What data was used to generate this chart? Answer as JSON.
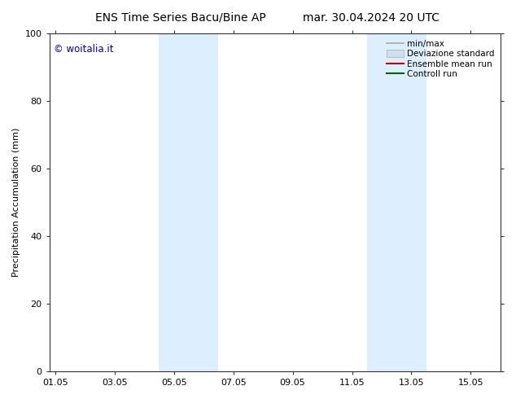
{
  "title_left": "ENS Time Series Bacu/Bine AP",
  "title_right": "mar. 30.04.2024 20 UTC",
  "ylabel": "Precipitation Accumulation (mm)",
  "ylim": [
    0,
    100
  ],
  "yticks": [
    0,
    20,
    40,
    60,
    80,
    100
  ],
  "xtick_labels": [
    "01.05",
    "03.05",
    "05.05",
    "07.05",
    "09.05",
    "11.05",
    "13.05",
    "15.05"
  ],
  "xtick_positions": [
    0,
    2,
    4,
    6,
    8,
    10,
    12,
    14
  ],
  "xlim": [
    -0.2,
    15.0
  ],
  "shaded_bands": [
    {
      "x_start": 3.5,
      "x_end": 4.5,
      "color": "#ddeeff"
    },
    {
      "x_start": 4.5,
      "x_end": 5.5,
      "color": "#ddeeff"
    },
    {
      "x_start": 10.5,
      "x_end": 11.5,
      "color": "#ddeeff"
    },
    {
      "x_start": 11.5,
      "x_end": 12.5,
      "color": "#ddeeff"
    }
  ],
  "legend_entries": [
    {
      "label": "min/max",
      "color": "#aaaaaa",
      "lw": 1.2,
      "patch": false
    },
    {
      "label": "Deviazione standard",
      "color": "#cce0f0",
      "lw": 8,
      "patch": true
    },
    {
      "label": "Ensemble mean run",
      "color": "#cc0000",
      "lw": 1.5,
      "patch": false
    },
    {
      "label": "Controll run",
      "color": "#006600",
      "lw": 1.5,
      "patch": false
    }
  ],
  "watermark_text": "© woitalia.it",
  "watermark_color": "#0000bb",
  "background_color": "#ffffff",
  "title_fontsize": 10,
  "label_fontsize": 8,
  "tick_fontsize": 8,
  "legend_fontsize": 7.5
}
